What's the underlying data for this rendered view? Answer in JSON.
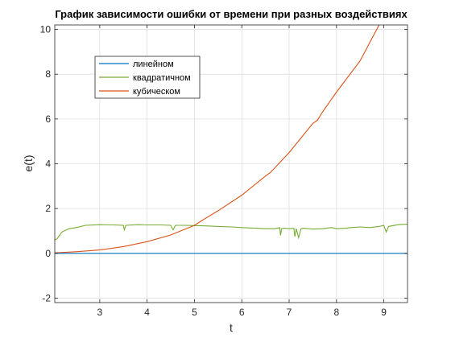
{
  "chart_data": {
    "type": "line",
    "title": "График зависимости ошибки от времени при разных воздействиях",
    "xlabel": "t",
    "ylabel": "e(t)",
    "xlim": [
      2.05,
      9.5
    ],
    "ylim": [
      -2.2,
      10.2
    ],
    "xticks": [
      3,
      4,
      5,
      6,
      7,
      8,
      9
    ],
    "yticks": [
      -2,
      0,
      2,
      4,
      6,
      8,
      10
    ],
    "grid": true,
    "legend_position": "upper-left",
    "series": [
      {
        "name": "линейном",
        "color": "#0072BD",
        "x": [
          2.05,
          3,
          4,
          5,
          6,
          7,
          8,
          9,
          9.5
        ],
        "y": [
          0.0,
          0.0,
          0.0,
          0.0,
          0.0,
          0.0,
          0.0,
          0.0,
          0.0
        ]
      },
      {
        "name": "квадратичном",
        "color": "#77AC30",
        "x": [
          2.05,
          2.1,
          2.2,
          2.35,
          2.5,
          2.7,
          3.0,
          3.3,
          3.5,
          3.52,
          3.55,
          3.8,
          4.0,
          4.3,
          4.5,
          4.55,
          4.6,
          4.8,
          5.0,
          5.3,
          5.5,
          5.8,
          6.0,
          6.3,
          6.5,
          6.7,
          6.8,
          6.82,
          6.84,
          6.9,
          7.0,
          7.1,
          7.12,
          7.15,
          7.2,
          7.25,
          7.3,
          7.5,
          7.7,
          7.9,
          8.0,
          8.2,
          8.3,
          8.5,
          8.7,
          8.9,
          9.0,
          9.05,
          9.1,
          9.3,
          9.5
        ],
        "y": [
          0.6,
          0.65,
          0.95,
          1.1,
          1.15,
          1.25,
          1.28,
          1.27,
          1.25,
          1.05,
          1.25,
          1.28,
          1.27,
          1.27,
          1.25,
          1.05,
          1.25,
          1.25,
          1.24,
          1.22,
          1.2,
          1.18,
          1.15,
          1.12,
          1.1,
          1.1,
          1.15,
          0.8,
          1.1,
          1.12,
          1.1,
          1.12,
          0.75,
          1.1,
          0.7,
          1.1,
          1.12,
          1.08,
          1.1,
          1.15,
          1.1,
          1.12,
          1.15,
          1.18,
          1.15,
          1.2,
          1.25,
          0.95,
          1.2,
          1.28,
          1.3
        ]
      },
      {
        "name": "кубическом",
        "color": "#D95319",
        "x": [
          2.05,
          2.5,
          3.0,
          3.5,
          4.0,
          4.5,
          5.0,
          5.2,
          5.5,
          6.0,
          6.5,
          6.6,
          7.0,
          7.5,
          7.6,
          7.7,
          8.0,
          8.5,
          8.9
        ],
        "y": [
          0.02,
          0.07,
          0.15,
          0.3,
          0.52,
          0.82,
          1.25,
          1.52,
          1.9,
          2.6,
          3.45,
          3.6,
          4.5,
          5.8,
          5.95,
          6.3,
          7.2,
          8.6,
          10.2
        ]
      }
    ]
  }
}
